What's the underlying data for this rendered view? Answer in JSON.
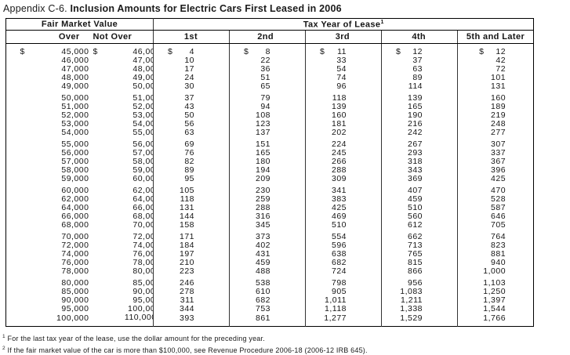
{
  "page": {
    "title_prefix": "Appendix C-6.",
    "title": "Inclusion Amounts for Electric Cars First Leased in 2006"
  },
  "table": {
    "section_headers": {
      "fmv": "Fair Market Value",
      "tax": "Tax Year of Lease",
      "tax_sup": "1"
    },
    "columns": [
      "Over",
      "Not Over",
      "1st",
      "2nd",
      "3rd",
      "4th",
      "5th and Later"
    ],
    "dollar_sign": "$",
    "cell_footnote": {
      "group_index": 5,
      "row_index": 4,
      "col_index": 1,
      "ref": "2"
    },
    "groups": [
      [
        [
          "45,000",
          "46,000",
          "4",
          "8",
          "11",
          "12",
          "12"
        ],
        [
          "46,000",
          "47,000",
          "10",
          "22",
          "33",
          "37",
          "42"
        ],
        [
          "47,000",
          "48,000",
          "17",
          "36",
          "54",
          "63",
          "72"
        ],
        [
          "48,000",
          "49,000",
          "24",
          "51",
          "74",
          "89",
          "101"
        ],
        [
          "49,000",
          "50,000",
          "30",
          "65",
          "96",
          "114",
          "131"
        ]
      ],
      [
        [
          "50,000",
          "51,000",
          "37",
          "79",
          "118",
          "139",
          "160"
        ],
        [
          "51,000",
          "52,000",
          "43",
          "94",
          "139",
          "165",
          "189"
        ],
        [
          "52,000",
          "53,000",
          "50",
          "108",
          "160",
          "190",
          "219"
        ],
        [
          "53,000",
          "54,000",
          "56",
          "123",
          "181",
          "216",
          "248"
        ],
        [
          "54,000",
          "55,000",
          "63",
          "137",
          "202",
          "242",
          "277"
        ]
      ],
      [
        [
          "55,000",
          "56,000",
          "69",
          "151",
          "224",
          "267",
          "307"
        ],
        [
          "56,000",
          "57,000",
          "76",
          "165",
          "245",
          "293",
          "337"
        ],
        [
          "57,000",
          "58,000",
          "82",
          "180",
          "266",
          "318",
          "367"
        ],
        [
          "58,000",
          "59,000",
          "89",
          "194",
          "288",
          "343",
          "396"
        ],
        [
          "59,000",
          "60,000",
          "95",
          "209",
          "309",
          "369",
          "425"
        ]
      ],
      [
        [
          "60,000",
          "62,000",
          "105",
          "230",
          "341",
          "407",
          "470"
        ],
        [
          "62,000",
          "64,000",
          "118",
          "259",
          "383",
          "459",
          "528"
        ],
        [
          "64,000",
          "66,000",
          "131",
          "288",
          "425",
          "510",
          "587"
        ],
        [
          "66,000",
          "68,000",
          "144",
          "316",
          "469",
          "560",
          "646"
        ],
        [
          "68,000",
          "70,000",
          "158",
          "345",
          "510",
          "612",
          "705"
        ]
      ],
      [
        [
          "70,000",
          "72,000",
          "171",
          "373",
          "554",
          "662",
          "764"
        ],
        [
          "72,000",
          "74,000",
          "184",
          "402",
          "596",
          "713",
          "823"
        ],
        [
          "74,000",
          "76,000",
          "197",
          "431",
          "638",
          "765",
          "881"
        ],
        [
          "76,000",
          "78,000",
          "210",
          "459",
          "682",
          "815",
          "940"
        ],
        [
          "78,000",
          "80,000",
          "223",
          "488",
          "724",
          "866",
          "1,000"
        ]
      ],
      [
        [
          "80,000",
          "85,000",
          "246",
          "538",
          "798",
          "956",
          "1,103"
        ],
        [
          "85,000",
          "90,000",
          "278",
          "610",
          "905",
          "1,083",
          "1,250"
        ],
        [
          "90,000",
          "95,000",
          "311",
          "682",
          "1,011",
          "1,211",
          "1,397"
        ],
        [
          "95,000",
          "100,000",
          "344",
          "753",
          "1,118",
          "1,338",
          "1,544"
        ],
        [
          "100,000",
          "110,000",
          "393",
          "861",
          "1,277",
          "1,529",
          "1,766"
        ]
      ]
    ]
  },
  "footnotes": [
    {
      "ref": "1",
      "text": "For the last tax year of the lease, use the dollar amount for the preceding year."
    },
    {
      "ref": "2",
      "text": "If the fair market value of the car is more than $100,000, see Revenue Procedure 2006-18 (2006-12 IRB 645)."
    }
  ]
}
